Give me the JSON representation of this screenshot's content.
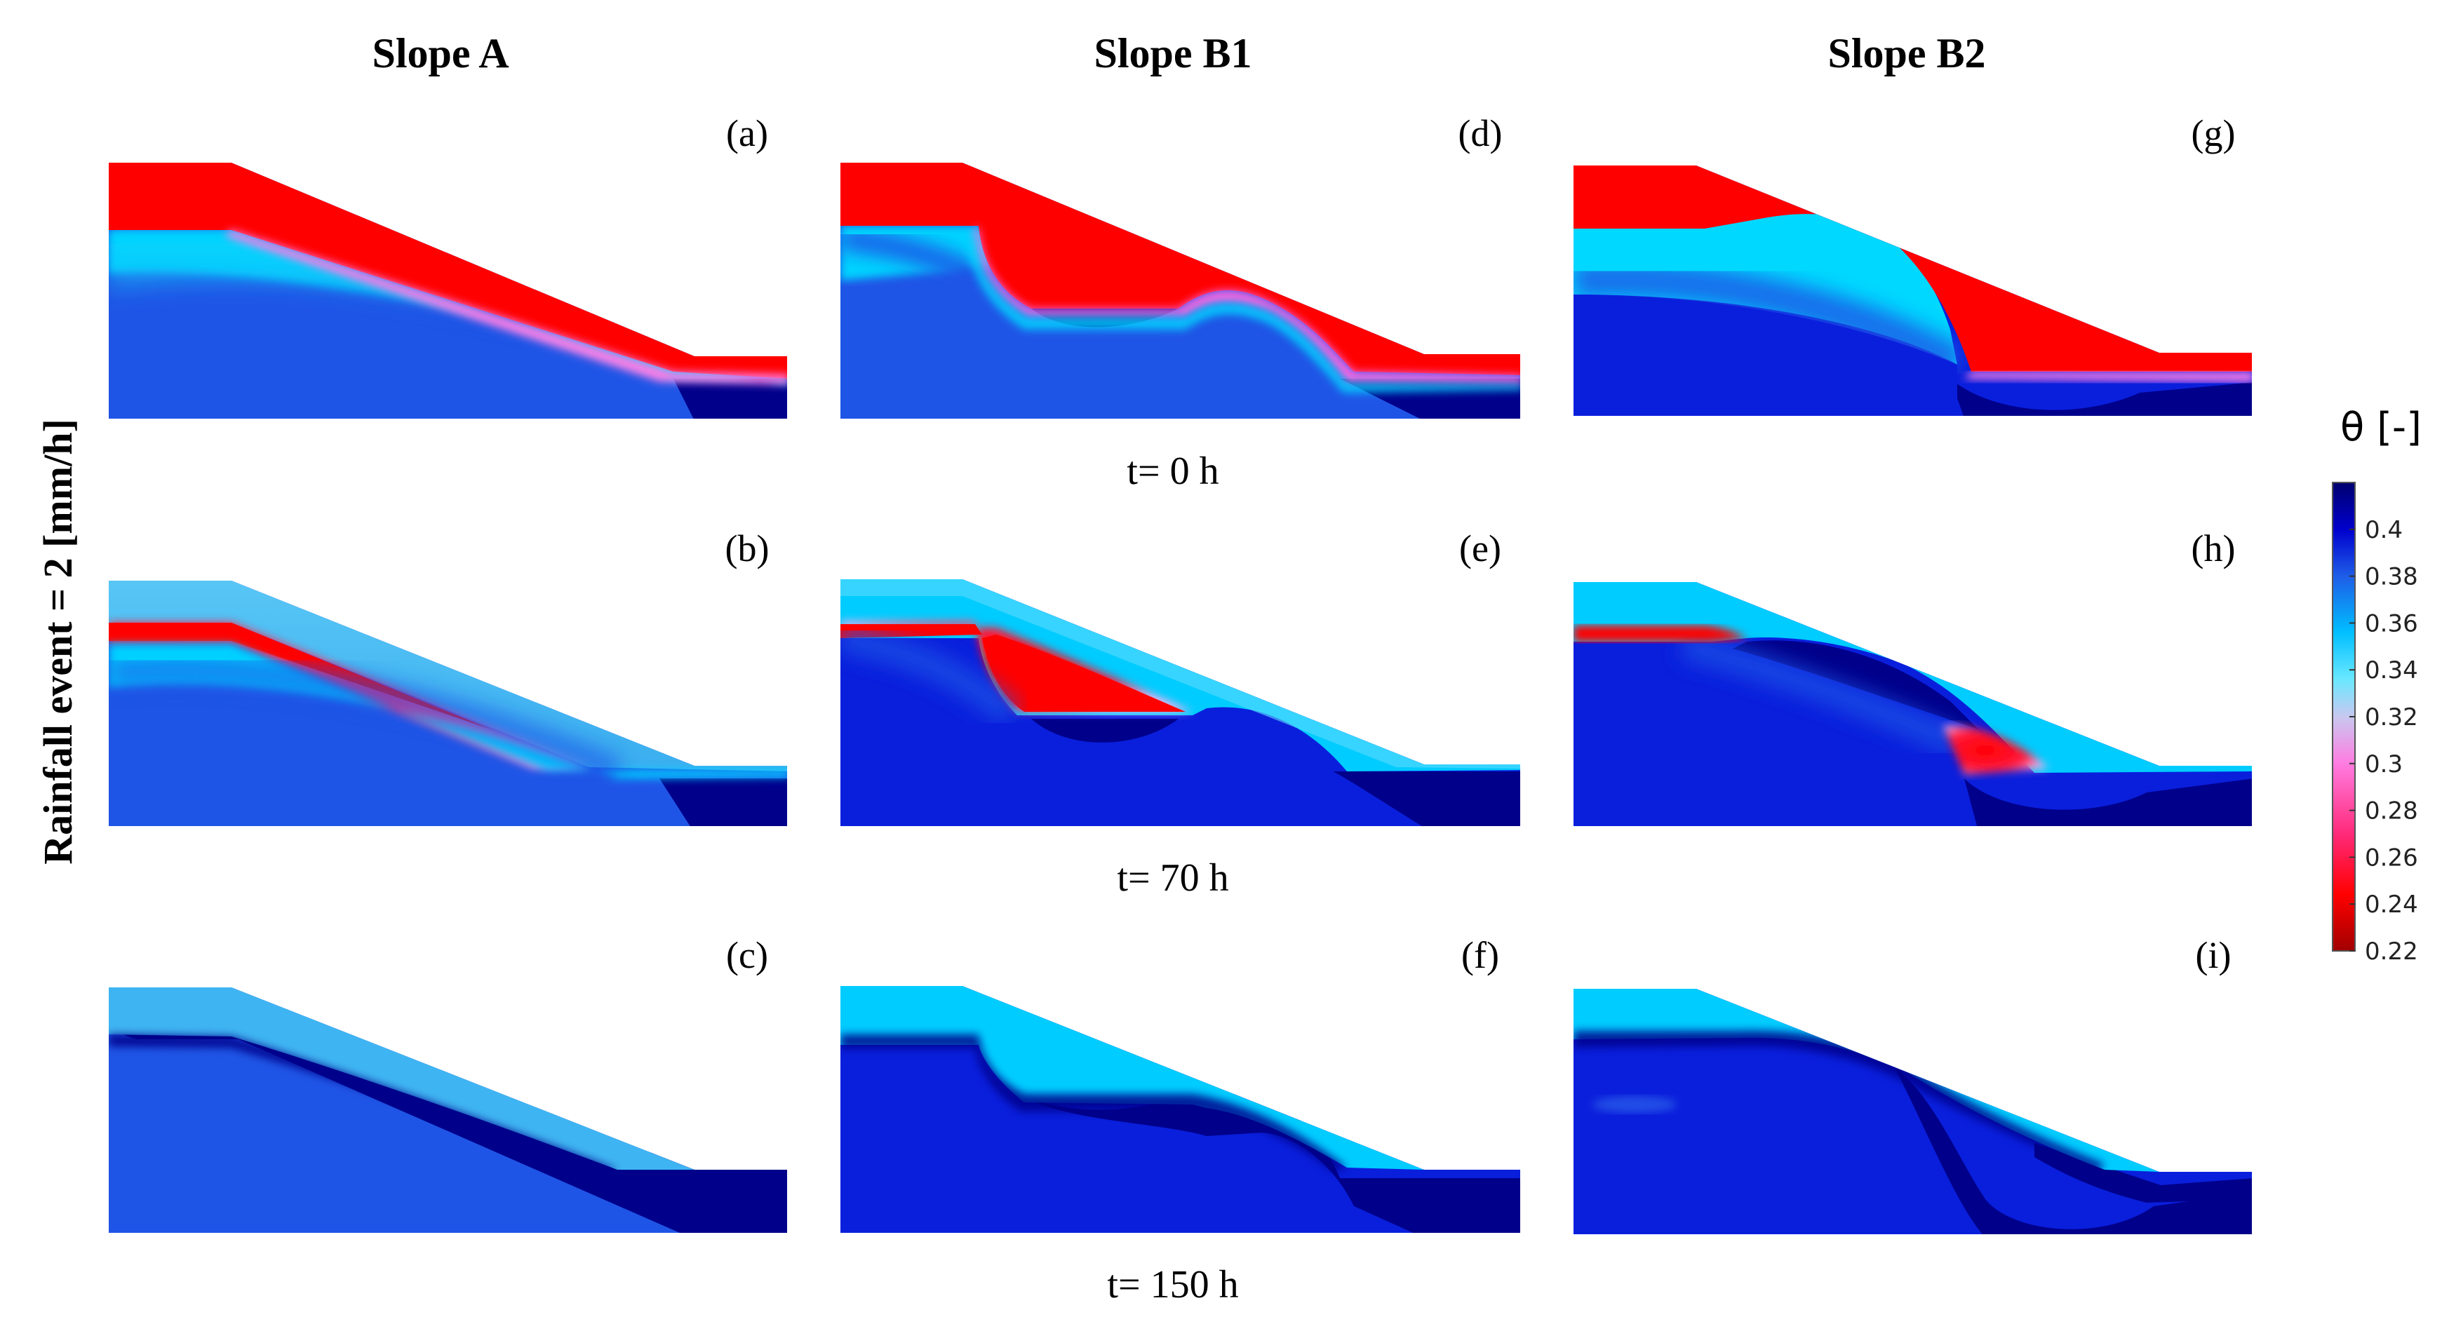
{
  "columns": [
    {
      "title": "Slope A"
    },
    {
      "title": "Slope B1"
    },
    {
      "title": "Slope B2"
    }
  ],
  "row_axis_label": "Rainfall event = 2 [mm/h]",
  "times": [
    "t= 0 h",
    "t= 70 h",
    "t= 150 h"
  ],
  "panels": [
    {
      "id": "a",
      "label": "(a)",
      "slope": "A",
      "time_h": 0
    },
    {
      "id": "b",
      "label": "(b)",
      "slope": "A",
      "time_h": 70
    },
    {
      "id": "c",
      "label": "(c)",
      "slope": "A",
      "time_h": 150
    },
    {
      "id": "d",
      "label": "(d)",
      "slope": "B1",
      "time_h": 0
    },
    {
      "id": "e",
      "label": "(e)",
      "slope": "B1",
      "time_h": 70
    },
    {
      "id": "f",
      "label": "(f)",
      "slope": "B1",
      "time_h": 150
    },
    {
      "id": "g",
      "label": "(g)",
      "slope": "B2",
      "time_h": 0
    },
    {
      "id": "h",
      "label": "(h)",
      "slope": "B2",
      "time_h": 70
    },
    {
      "id": "i",
      "label": "(i)",
      "slope": "B2",
      "time_h": 150
    }
  ],
  "colorbar": {
    "title": "θ  [-]",
    "min": 0.22,
    "max": 0.42,
    "ticks": [
      "0.4",
      "0.38",
      "0.36",
      "0.34",
      "0.32",
      "0.3",
      "0.28",
      "0.26",
      "0.24",
      "0.22"
    ],
    "colors": [
      "#00007a",
      "#0000cd",
      "#1e5de8",
      "#00bfff",
      "#5fe6ff",
      "#c8c8f0",
      "#ff7ce0",
      "#ff2a7a",
      "#ff0000",
      "#b40000"
    ]
  },
  "palette": {
    "dry": "#ff0000",
    "dry_dark": "#d80000",
    "pink": "#ff7ee6",
    "cyan": "#00d8ff",
    "light_blue": "#35b5f0",
    "mid_blue": "#1f55e6",
    "wet": "#0a1fdc",
    "saturated": "#00008b"
  }
}
